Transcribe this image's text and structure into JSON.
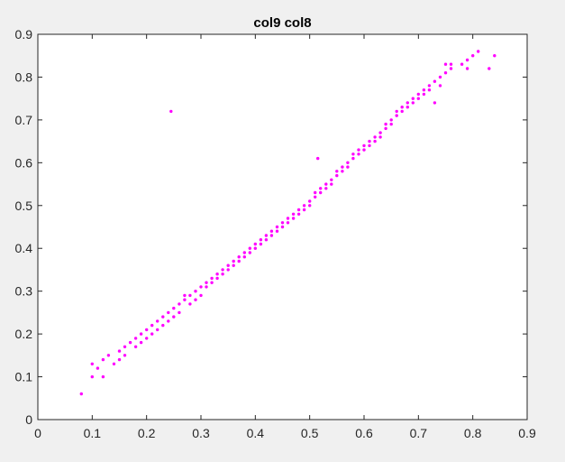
{
  "chart_data": {
    "type": "scatter",
    "title": "col9 col8",
    "xlabel": "",
    "ylabel": "",
    "xlim": [
      0,
      0.9
    ],
    "ylim": [
      0,
      0.9
    ],
    "x_ticks": [
      "0",
      "0.1",
      "0.2",
      "0.3",
      "0.4",
      "0.5",
      "0.6",
      "0.7",
      "0.8",
      "0.9"
    ],
    "y_ticks": [
      "0",
      "0.1",
      "0.2",
      "0.3",
      "0.4",
      "0.5",
      "0.6",
      "0.7",
      "0.8",
      "0.9"
    ],
    "grid": false,
    "legend": "none",
    "marker_color": "#ff00ff",
    "axis_color": "#262626",
    "plot_background": "#ffffff",
    "series": [
      {
        "points": [
          [
            0.08,
            0.06
          ],
          [
            0.1,
            0.1
          ],
          [
            0.1,
            0.13
          ],
          [
            0.11,
            0.12
          ],
          [
            0.12,
            0.1
          ],
          [
            0.12,
            0.14
          ],
          [
            0.13,
            0.15
          ],
          [
            0.14,
            0.13
          ],
          [
            0.15,
            0.14
          ],
          [
            0.15,
            0.16
          ],
          [
            0.16,
            0.17
          ],
          [
            0.16,
            0.15
          ],
          [
            0.17,
            0.18
          ],
          [
            0.18,
            0.17
          ],
          [
            0.18,
            0.19
          ],
          [
            0.19,
            0.18
          ],
          [
            0.19,
            0.2
          ],
          [
            0.2,
            0.21
          ],
          [
            0.2,
            0.19
          ],
          [
            0.21,
            0.22
          ],
          [
            0.21,
            0.2
          ],
          [
            0.22,
            0.23
          ],
          [
            0.22,
            0.21
          ],
          [
            0.23,
            0.24
          ],
          [
            0.23,
            0.22
          ],
          [
            0.24,
            0.25
          ],
          [
            0.24,
            0.23
          ],
          [
            0.245,
            0.72
          ],
          [
            0.25,
            0.26
          ],
          [
            0.25,
            0.24
          ],
          [
            0.26,
            0.27
          ],
          [
            0.26,
            0.25
          ],
          [
            0.27,
            0.28
          ],
          [
            0.27,
            0.29
          ],
          [
            0.28,
            0.29
          ],
          [
            0.28,
            0.27
          ],
          [
            0.29,
            0.3
          ],
          [
            0.29,
            0.28
          ],
          [
            0.3,
            0.31
          ],
          [
            0.3,
            0.29
          ],
          [
            0.31,
            0.32
          ],
          [
            0.31,
            0.31
          ],
          [
            0.32,
            0.33
          ],
          [
            0.32,
            0.32
          ],
          [
            0.33,
            0.34
          ],
          [
            0.33,
            0.33
          ],
          [
            0.34,
            0.35
          ],
          [
            0.34,
            0.34
          ],
          [
            0.35,
            0.36
          ],
          [
            0.35,
            0.35
          ],
          [
            0.36,
            0.37
          ],
          [
            0.36,
            0.36
          ],
          [
            0.37,
            0.38
          ],
          [
            0.37,
            0.37
          ],
          [
            0.38,
            0.39
          ],
          [
            0.38,
            0.38
          ],
          [
            0.39,
            0.4
          ],
          [
            0.39,
            0.39
          ],
          [
            0.4,
            0.41
          ],
          [
            0.4,
            0.4
          ],
          [
            0.41,
            0.42
          ],
          [
            0.41,
            0.41
          ],
          [
            0.42,
            0.43
          ],
          [
            0.42,
            0.42
          ],
          [
            0.43,
            0.44
          ],
          [
            0.43,
            0.43
          ],
          [
            0.44,
            0.45
          ],
          [
            0.44,
            0.44
          ],
          [
            0.45,
            0.46
          ],
          [
            0.45,
            0.45
          ],
          [
            0.46,
            0.47
          ],
          [
            0.46,
            0.46
          ],
          [
            0.47,
            0.48
          ],
          [
            0.47,
            0.47
          ],
          [
            0.48,
            0.49
          ],
          [
            0.48,
            0.48
          ],
          [
            0.49,
            0.5
          ],
          [
            0.49,
            0.49
          ],
          [
            0.5,
            0.51
          ],
          [
            0.5,
            0.5
          ],
          [
            0.51,
            0.52
          ],
          [
            0.51,
            0.53
          ],
          [
            0.515,
            0.61
          ],
          [
            0.52,
            0.54
          ],
          [
            0.52,
            0.53
          ],
          [
            0.53,
            0.55
          ],
          [
            0.53,
            0.54
          ],
          [
            0.54,
            0.56
          ],
          [
            0.54,
            0.55
          ],
          [
            0.55,
            0.57
          ],
          [
            0.55,
            0.58
          ],
          [
            0.56,
            0.59
          ],
          [
            0.56,
            0.58
          ],
          [
            0.57,
            0.6
          ],
          [
            0.57,
            0.59
          ],
          [
            0.58,
            0.61
          ],
          [
            0.58,
            0.62
          ],
          [
            0.59,
            0.62
          ],
          [
            0.59,
            0.63
          ],
          [
            0.6,
            0.64
          ],
          [
            0.6,
            0.63
          ],
          [
            0.61,
            0.65
          ],
          [
            0.61,
            0.64
          ],
          [
            0.62,
            0.66
          ],
          [
            0.62,
            0.65
          ],
          [
            0.63,
            0.67
          ],
          [
            0.63,
            0.66
          ],
          [
            0.64,
            0.68
          ],
          [
            0.64,
            0.69
          ],
          [
            0.65,
            0.7
          ],
          [
            0.65,
            0.69
          ],
          [
            0.66,
            0.71
          ],
          [
            0.66,
            0.72
          ],
          [
            0.67,
            0.72
          ],
          [
            0.67,
            0.73
          ],
          [
            0.68,
            0.74
          ],
          [
            0.68,
            0.73
          ],
          [
            0.69,
            0.75
          ],
          [
            0.69,
            0.74
          ],
          [
            0.7,
            0.76
          ],
          [
            0.7,
            0.75
          ],
          [
            0.71,
            0.77
          ],
          [
            0.71,
            0.76
          ],
          [
            0.72,
            0.78
          ],
          [
            0.72,
            0.77
          ],
          [
            0.73,
            0.79
          ],
          [
            0.73,
            0.74
          ],
          [
            0.74,
            0.8
          ],
          [
            0.74,
            0.78
          ],
          [
            0.75,
            0.81
          ],
          [
            0.75,
            0.83
          ],
          [
            0.76,
            0.82
          ],
          [
            0.76,
            0.83
          ],
          [
            0.78,
            0.83
          ],
          [
            0.79,
            0.84
          ],
          [
            0.79,
            0.82
          ],
          [
            0.8,
            0.85
          ],
          [
            0.81,
            0.86
          ],
          [
            0.83,
            0.82
          ],
          [
            0.84,
            0.85
          ]
        ]
      }
    ]
  }
}
